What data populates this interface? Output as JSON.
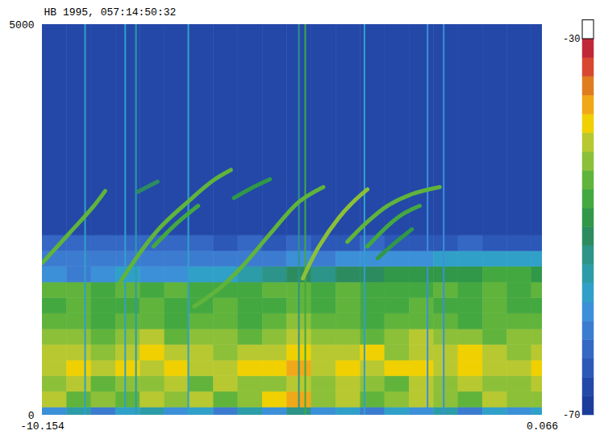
{
  "chart_data": {
    "type": "spectrogram",
    "title": "HB 1995, 057:14:50:32",
    "xlim": [
      -10.154,
      0.066
    ],
    "xticks": [
      -10.154,
      0.066
    ],
    "ylim": [
      0,
      5000
    ],
    "yticks": [
      0,
      5000
    ],
    "cells": {
      "x_edges": [
        -10.154,
        -9.65,
        -9.15,
        -8.65,
        -8.15,
        -7.65,
        -7.15,
        -6.65,
        -6.15,
        -5.65,
        -5.15,
        -4.65,
        -4.15,
        -3.65,
        -3.15,
        -2.65,
        -2.15,
        -1.65,
        -1.15,
        -0.65,
        -0.15,
        0.066
      ],
      "y_edges": [
        0,
        100,
        300,
        500,
        700,
        900,
        1100,
        1300,
        1500,
        1700,
        1900,
        2100,
        2300,
        5000
      ],
      "values": [
        [
          -60,
          -56,
          -62,
          -58,
          -55,
          -60,
          -57,
          -61,
          -56,
          -59,
          -54,
          -60,
          -58,
          -62,
          -57,
          -59,
          -55,
          -61,
          -58,
          -60,
          -57
        ],
        [
          -42,
          -45,
          -43,
          -46,
          -41,
          -44,
          -42,
          -45,
          -43,
          -40,
          -38,
          -44,
          -42,
          -45,
          -43,
          -41,
          -44,
          -46,
          -42,
          -44,
          -43
        ],
        [
          -44,
          -42,
          -45,
          -43,
          -44,
          -41,
          -45,
          -42,
          -44,
          -43,
          -41,
          -44,
          -42,
          -43,
          -45,
          -42,
          -44,
          -41,
          -43,
          -44,
          -42
        ],
        [
          -41,
          -40,
          -42,
          -39,
          -41,
          -40,
          -42,
          -41,
          -39,
          -40,
          -38,
          -41,
          -40,
          -42,
          -40,
          -39,
          -41,
          -40,
          -42,
          -41,
          -40
        ],
        [
          -42,
          -41,
          -43,
          -41,
          -40,
          -42,
          -41,
          -43,
          -42,
          -41,
          -40,
          -42,
          -41,
          -40,
          -43,
          -41,
          -42,
          -40,
          -41,
          -43,
          -42
        ],
        [
          -44,
          -43,
          -45,
          -44,
          -42,
          -45,
          -43,
          -44,
          -45,
          -43,
          -42,
          -44,
          -43,
          -45,
          -44,
          -42,
          -44,
          -43,
          -45,
          -44,
          -43
        ],
        [
          -46,
          -45,
          -47,
          -46,
          -45,
          -47,
          -46,
          -45,
          -47,
          -46,
          -44,
          -46,
          -45,
          -47,
          -46,
          -45,
          -46,
          -47,
          -45,
          -46,
          -46
        ],
        [
          -47,
          -46,
          -48,
          -47,
          -46,
          -48,
          -47,
          -46,
          -48,
          -47,
          -45,
          -47,
          -46,
          -48,
          -47,
          -46,
          -47,
          -48,
          -46,
          -47,
          -47
        ],
        [
          -46,
          -45,
          -47,
          -46,
          -47,
          -46,
          -47,
          -48,
          -47,
          -46,
          -45,
          -47,
          -46,
          -47,
          -48,
          -47,
          -46,
          -47,
          -46,
          -47,
          -46
        ],
        [
          -60,
          -61,
          -59,
          -58,
          -60,
          -59,
          -58,
          -57,
          -55,
          -54,
          -52,
          -53,
          -52,
          -51,
          -50,
          -50,
          -49,
          -49,
          -48,
          -48,
          -49
        ],
        [
          -62,
          -62,
          -61,
          -62,
          -61,
          -62,
          -62,
          -61,
          -62,
          -61,
          -60,
          -61,
          -60,
          -60,
          -59,
          -59,
          -58,
          -58,
          -58,
          -57,
          -58
        ],
        [
          -63,
          -64,
          -63,
          -64,
          -64,
          -63,
          -64,
          -65,
          -64,
          -65,
          -64,
          -65,
          -65,
          -64,
          -65,
          -65,
          -65,
          -64,
          -65,
          -65,
          -65
        ],
        [
          -67,
          -67,
          -67,
          -67,
          -67,
          -67,
          -67,
          -67,
          -67,
          -67,
          -67,
          -67,
          -67,
          -67,
          -67,
          -67,
          -67,
          -67,
          -67,
          -67,
          -67
        ]
      ]
    },
    "traces": [
      {
        "t": [
          -10.154,
          -9.6,
          -9.1,
          -8.87
        ],
        "f": [
          1950,
          2330,
          2680,
          2870
        ],
        "level": -46
      },
      {
        "t": [
          -8.2,
          -7.8
        ],
        "f": [
          2860,
          2990
        ],
        "level": -52
      },
      {
        "t": [
          -8.62,
          -8.1,
          -7.72,
          -7.2,
          -6.65,
          -6.3
        ],
        "f": [
          1650,
          2130,
          2420,
          2720,
          3010,
          3140
        ],
        "level": -46
      },
      {
        "t": [
          -7.88,
          -7.4,
          -6.97
        ],
        "f": [
          2160,
          2460,
          2680
        ],
        "level": -48
      },
      {
        "t": [
          -6.24,
          -5.9,
          -5.5
        ],
        "f": [
          2780,
          2900,
          3020
        ],
        "level": -50
      },
      {
        "t": [
          -7.05,
          -6.5,
          -6.06,
          -5.5,
          -4.91,
          -4.41
        ],
        "f": [
          1390,
          1640,
          1910,
          2320,
          2730,
          2920
        ],
        "level": -46
      },
      {
        "t": [
          -4.83,
          -4.5,
          -4.09,
          -3.8,
          -3.51
        ],
        "f": [
          1750,
          2160,
          2530,
          2730,
          2890
        ],
        "level": -44
      },
      {
        "t": [
          -3.92,
          -3.5,
          -3.1,
          -2.6,
          -2.03
        ],
        "f": [
          2220,
          2480,
          2680,
          2830,
          2920
        ],
        "level": -46
      },
      {
        "t": [
          -3.51,
          -3.1,
          -2.77,
          -2.44
        ],
        "f": [
          2160,
          2420,
          2580,
          2680
        ],
        "level": -48
      },
      {
        "t": [
          -3.3,
          -2.9,
          -2.6
        ],
        "f": [
          2010,
          2230,
          2380
        ],
        "level": -50
      }
    ],
    "sferics": [
      {
        "t": -9.28,
        "level": -58
      },
      {
        "t": -8.46,
        "level": -58
      },
      {
        "t": -8.24,
        "level": -56
      },
      {
        "t": -7.17,
        "level": -58
      },
      {
        "t": -4.91,
        "level": -54
      },
      {
        "t": -4.78,
        "level": -48
      },
      {
        "t": -3.57,
        "level": -58
      },
      {
        "t": -2.28,
        "level": -60
      },
      {
        "t": -1.95,
        "level": -60
      }
    ],
    "colorbar": {
      "range": [
        -70,
        -30
      ],
      "ticks": [
        -70,
        -30
      ],
      "colors": [
        "#1c3c9c",
        "#2448a8",
        "#2c58b8",
        "#3468c4",
        "#3c7cd0",
        "#3c90d8",
        "#30a0c8",
        "#2c9ca8",
        "#2c9488",
        "#2c8c60",
        "#309848",
        "#44a840",
        "#60b43c",
        "#8cc038",
        "#b8c830",
        "#f0d000",
        "#f0a818",
        "#e07c20",
        "#d84830",
        "#c02838"
      ],
      "over_color": "#ffffff"
    }
  }
}
